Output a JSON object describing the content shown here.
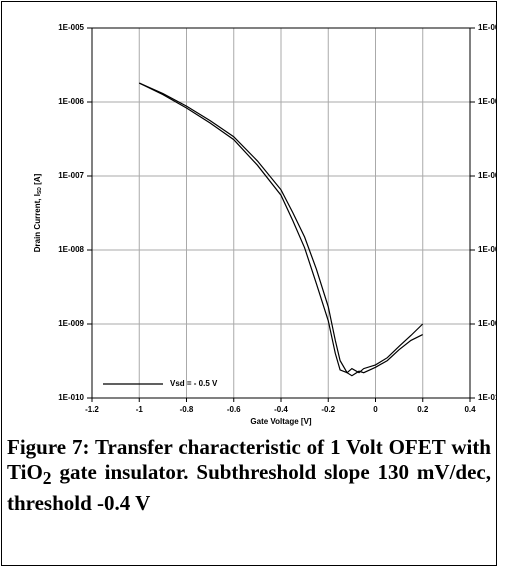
{
  "chart_data": {
    "type": "line",
    "xlabel": "Gate Voltage [V]",
    "ylabel": [
      "Drain Current, I",
      "SD",
      " [A]"
    ],
    "x": [
      -1,
      -0.9,
      -0.8,
      -0.7,
      -0.6,
      -0.5,
      -0.4,
      -0.35,
      -0.3,
      -0.25,
      -0.2,
      -0.17,
      -0.15,
      -0.12,
      -0.1,
      -0.07,
      -0.05,
      0,
      0.05,
      0.1,
      0.15,
      0.2
    ],
    "series": [
      {
        "name": "Vsd = - 0.5 V",
        "color": "#000000",
        "values": [
          1.8e-06,
          1.26e-06,
          8.3e-07,
          5.2e-07,
          3.1e-07,
          1.4e-07,
          5.5e-08,
          2.5e-08,
          1.07e-08,
          3.5e-09,
          1.1e-09,
          4e-10,
          2.4e-10,
          2.2e-10,
          2.5e-10,
          2.2e-10,
          2.5e-10,
          2.8e-10,
          3.5e-10,
          5e-10,
          7e-10,
          1e-09
        ]
      },
      {
        "color": "#000000",
        "values": [
          1.8e-06,
          1.3e-06,
          8.8e-07,
          5.6e-07,
          3.4e-07,
          1.6e-07,
          6.5e-08,
          3.2e-08,
          1.5e-08,
          5.5e-09,
          1.7e-09,
          6e-10,
          3.2e-10,
          2.2e-10,
          2e-10,
          2.3e-10,
          2.2e-10,
          2.6e-10,
          3.2e-10,
          4.5e-10,
          6e-10,
          7.2e-10
        ]
      }
    ],
    "xlim": [
      -1.2,
      0.4
    ],
    "xticks": [
      -1.2,
      -1,
      -0.8,
      -0.6,
      -0.4,
      -0.2,
      0,
      0.2,
      0.4
    ],
    "ylim": [
      1e-10,
      1e-05
    ],
    "log_y": true,
    "yticks": [
      {
        "value": 1e-10,
        "label": "1E-010"
      },
      {
        "value": 1e-09,
        "label": "1E-009"
      },
      {
        "value": 1e-08,
        "label": "1E-008"
      },
      {
        "value": 1e-07,
        "label": "1E-007"
      },
      {
        "value": 1e-06,
        "label": "1E-006"
      },
      {
        "value": 1e-05,
        "label": "1E-005"
      }
    ],
    "grid": true,
    "legend": "lower left"
  },
  "caption": [
    "Figure 7: Transfer characteristic of 1 Volt OFET with TiO",
    "2",
    " gate insulator. Subthreshold slope 130 mV/dec, threshold -0.4 V"
  ]
}
